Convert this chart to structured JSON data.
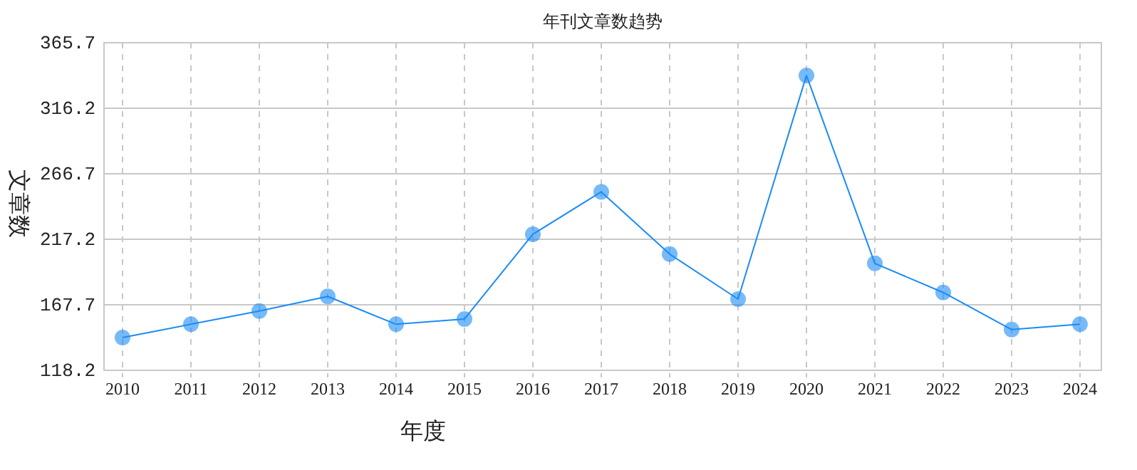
{
  "chart_data": {
    "type": "line",
    "title": "年刊文章数趋势",
    "xlabel": "年度",
    "ylabel": "文章数",
    "categories": [
      "2010",
      "2011",
      "2012",
      "2013",
      "2014",
      "2015",
      "2016",
      "2017",
      "2018",
      "2019",
      "2020",
      "2021",
      "2022",
      "2023",
      "2024"
    ],
    "series": [
      {
        "color": "#1a8cf5",
        "values": [
          143,
          153,
          163,
          174,
          153,
          157,
          221,
          253,
          206,
          172,
          341,
          199,
          177,
          149,
          153
        ]
      }
    ],
    "ylim": [
      118.2,
      365.7
    ],
    "yticks": [
      118.2,
      167.7,
      217.2,
      266.7,
      316.2,
      365.7
    ],
    "grid": true,
    "marker": "circle",
    "line_style": "solid"
  }
}
